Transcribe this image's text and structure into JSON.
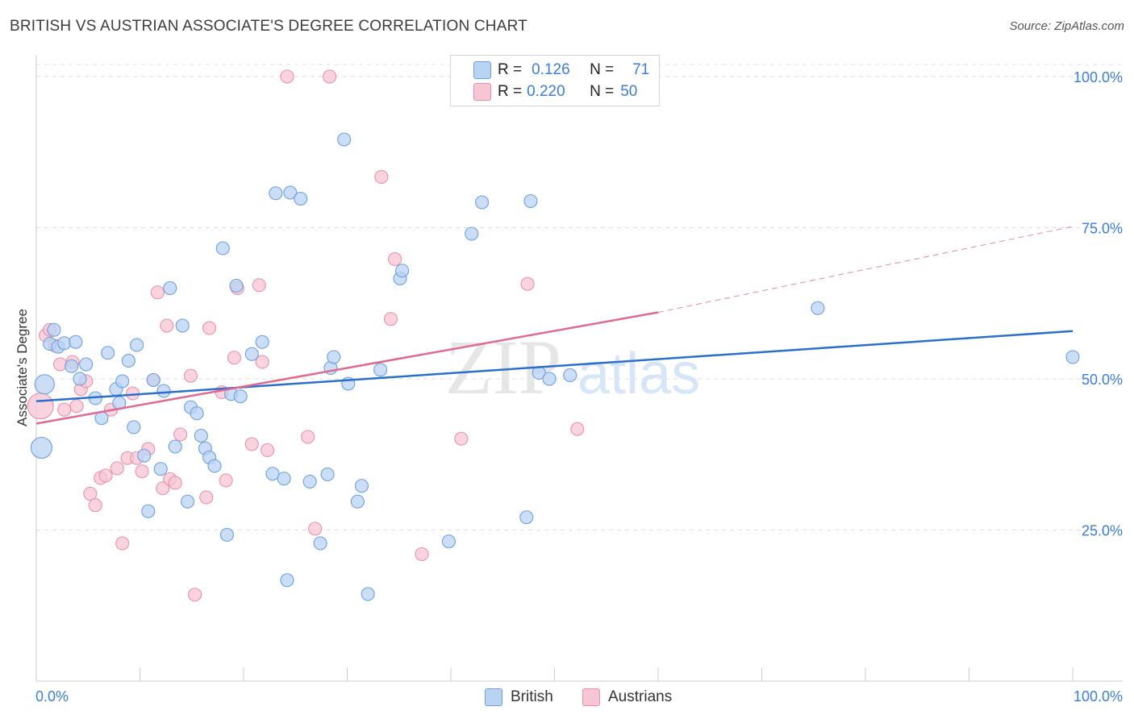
{
  "header": {
    "title": "BRITISH VS AUSTRIAN ASSOCIATE'S DEGREE CORRELATION CHART",
    "source": "Source: ZipAtlas.com"
  },
  "legend": {
    "rows": [
      {
        "r_label": "R =",
        "r_value": "0.126",
        "n_label": "N =",
        "n_value": "71"
      },
      {
        "r_label": "R =",
        "r_value": "0.220",
        "n_label": "N =",
        "n_value": "50"
      }
    ],
    "series_labels": [
      "British",
      "Austrians"
    ]
  },
  "watermark": {
    "zip": "ZIP",
    "atlas": "atlas"
  },
  "colors": {
    "british_fill": "#b9d3f3",
    "british_stroke": "#6a9fe0",
    "british_line": "#2a6fcf",
    "austrian_fill": "#f7c6d4",
    "austrian_stroke": "#e890ab",
    "austrian_line": "#e0698f",
    "axis_label": "#3b7dd8",
    "grid": "#dddddd"
  },
  "chart_data": {
    "type": "scatter",
    "title": "BRITISH VS AUSTRIAN ASSOCIATE'S DEGREE CORRELATION CHART",
    "xlabel": "",
    "ylabel": "Associate's Degree",
    "xlim": [
      0,
      100
    ],
    "ylim": [
      0,
      102
    ],
    "x_tick_labels": [
      "0.0%",
      "100.0%"
    ],
    "y_ticks": [
      25,
      50,
      75,
      100
    ],
    "y_tick_labels": [
      "25.0%",
      "50.0%",
      "75.0%",
      "100.0%"
    ],
    "series": [
      {
        "name": "British",
        "r": 0.126,
        "n": 71,
        "trend": {
          "x0": 0,
          "y0": 46.3,
          "x1": 100,
          "y1": 57.9
        },
        "points": [
          [
            0.5,
            38.6,
            13
          ],
          [
            0.8,
            49.1,
            12
          ],
          [
            1.3,
            55.8,
            8
          ],
          [
            1.7,
            58.1,
            8
          ],
          [
            2.1,
            55.3,
            8
          ],
          [
            2.7,
            55.9,
            8
          ],
          [
            3.4,
            52.1,
            8
          ],
          [
            3.8,
            56.1,
            8
          ],
          [
            4.2,
            50.0,
            8
          ],
          [
            4.8,
            52.4,
            8
          ],
          [
            5.7,
            46.8,
            8
          ],
          [
            6.3,
            43.5,
            8
          ],
          [
            6.9,
            54.3,
            8
          ],
          [
            7.7,
            48.3,
            8
          ],
          [
            8.0,
            46.0,
            8
          ],
          [
            8.3,
            49.6,
            8
          ],
          [
            8.9,
            53.0,
            8
          ],
          [
            9.4,
            42.0,
            8
          ],
          [
            9.7,
            55.6,
            8
          ],
          [
            10.4,
            37.3,
            8
          ],
          [
            10.8,
            28.1,
            8
          ],
          [
            11.3,
            49.8,
            8
          ],
          [
            12.0,
            35.1,
            8
          ],
          [
            12.3,
            48.0,
            8
          ],
          [
            12.9,
            65.0,
            8
          ],
          [
            13.4,
            38.8,
            8
          ],
          [
            14.1,
            58.8,
            8
          ],
          [
            14.6,
            29.7,
            8
          ],
          [
            14.9,
            45.3,
            8
          ],
          [
            15.5,
            44.3,
            8
          ],
          [
            15.9,
            40.6,
            8
          ],
          [
            16.3,
            38.5,
            8
          ],
          [
            16.7,
            37.0,
            8
          ],
          [
            17.2,
            35.6,
            8
          ],
          [
            18.0,
            71.6,
            8
          ],
          [
            18.4,
            24.2,
            8
          ],
          [
            18.8,
            47.5,
            8
          ],
          [
            19.3,
            65.4,
            8
          ],
          [
            19.7,
            47.1,
            8
          ],
          [
            20.8,
            54.1,
            8
          ],
          [
            21.8,
            56.1,
            8
          ],
          [
            22.8,
            34.3,
            8
          ],
          [
            23.1,
            80.7,
            8
          ],
          [
            23.9,
            33.5,
            8
          ],
          [
            24.2,
            16.7,
            8
          ],
          [
            24.5,
            80.8,
            8
          ],
          [
            25.5,
            79.8,
            8
          ],
          [
            26.4,
            33.0,
            8
          ],
          [
            27.4,
            22.8,
            8
          ],
          [
            28.1,
            34.2,
            8
          ],
          [
            28.4,
            51.8,
            8
          ],
          [
            28.7,
            53.6,
            8
          ],
          [
            29.7,
            89.6,
            8
          ],
          [
            30.1,
            49.2,
            8
          ],
          [
            31.0,
            29.7,
            8
          ],
          [
            31.4,
            32.3,
            8
          ],
          [
            32.0,
            14.4,
            8
          ],
          [
            33.2,
            51.5,
            8
          ],
          [
            35.1,
            66.6,
            8
          ],
          [
            35.3,
            67.9,
            8
          ],
          [
            39.8,
            23.1,
            8
          ],
          [
            42.0,
            74.0,
            8
          ],
          [
            43.0,
            79.2,
            8
          ],
          [
            47.3,
            27.1,
            8
          ],
          [
            47.7,
            79.4,
            8
          ],
          [
            48.5,
            51.0,
            8
          ],
          [
            49.5,
            50.0,
            8
          ],
          [
            51.5,
            50.6,
            8
          ],
          [
            75.4,
            61.7,
            8
          ],
          [
            100.0,
            53.6,
            8
          ]
        ]
      },
      {
        "name": "Austrians",
        "r": 0.22,
        "n": 50,
        "trend": {
          "x0": 0,
          "y0": 42.6,
          "x1": 60,
          "y1": 61.0,
          "dash_x1": 100,
          "dash_y1": 75.2
        },
        "points": [
          [
            0.4,
            45.5,
            16
          ],
          [
            0.9,
            57.2,
            8
          ],
          [
            1.3,
            58.1,
            8
          ],
          [
            1.8,
            55.5,
            8
          ],
          [
            2.3,
            52.4,
            8
          ],
          [
            2.7,
            44.9,
            8
          ],
          [
            3.5,
            52.8,
            8
          ],
          [
            3.9,
            45.5,
            8
          ],
          [
            4.3,
            48.3,
            8
          ],
          [
            4.8,
            49.6,
            8
          ],
          [
            5.2,
            31.0,
            8
          ],
          [
            5.7,
            29.1,
            8
          ],
          [
            6.2,
            33.6,
            8
          ],
          [
            6.7,
            34.0,
            8
          ],
          [
            7.2,
            44.9,
            8
          ],
          [
            7.8,
            35.2,
            8
          ],
          [
            8.3,
            22.8,
            8
          ],
          [
            8.8,
            36.9,
            8
          ],
          [
            9.3,
            47.6,
            8
          ],
          [
            9.7,
            36.9,
            8
          ],
          [
            10.2,
            34.7,
            8
          ],
          [
            10.8,
            38.4,
            8
          ],
          [
            11.3,
            49.8,
            8
          ],
          [
            11.7,
            64.3,
            8
          ],
          [
            12.2,
            31.9,
            8
          ],
          [
            12.6,
            58.8,
            8
          ],
          [
            12.9,
            33.4,
            8
          ],
          [
            13.4,
            32.8,
            8
          ],
          [
            13.9,
            40.8,
            8
          ],
          [
            14.9,
            50.5,
            8
          ],
          [
            15.3,
            14.3,
            8
          ],
          [
            16.4,
            30.4,
            8
          ],
          [
            16.7,
            58.4,
            8
          ],
          [
            17.9,
            47.8,
            8
          ],
          [
            18.3,
            33.2,
            8
          ],
          [
            19.1,
            53.5,
            8
          ],
          [
            19.4,
            65.0,
            8
          ],
          [
            20.8,
            39.2,
            8
          ],
          [
            21.5,
            65.5,
            8
          ],
          [
            21.8,
            52.8,
            8
          ],
          [
            22.3,
            38.2,
            8
          ],
          [
            24.2,
            100.0,
            8
          ],
          [
            26.2,
            40.4,
            8
          ],
          [
            26.9,
            25.2,
            8
          ],
          [
            28.3,
            100.0,
            8
          ],
          [
            33.3,
            83.4,
            8
          ],
          [
            34.2,
            59.9,
            8
          ],
          [
            34.6,
            69.8,
            8
          ],
          [
            37.2,
            21.0,
            8
          ],
          [
            41.0,
            40.1,
            8
          ],
          [
            47.4,
            65.7,
            8
          ],
          [
            52.2,
            41.7,
            8
          ]
        ]
      }
    ]
  }
}
